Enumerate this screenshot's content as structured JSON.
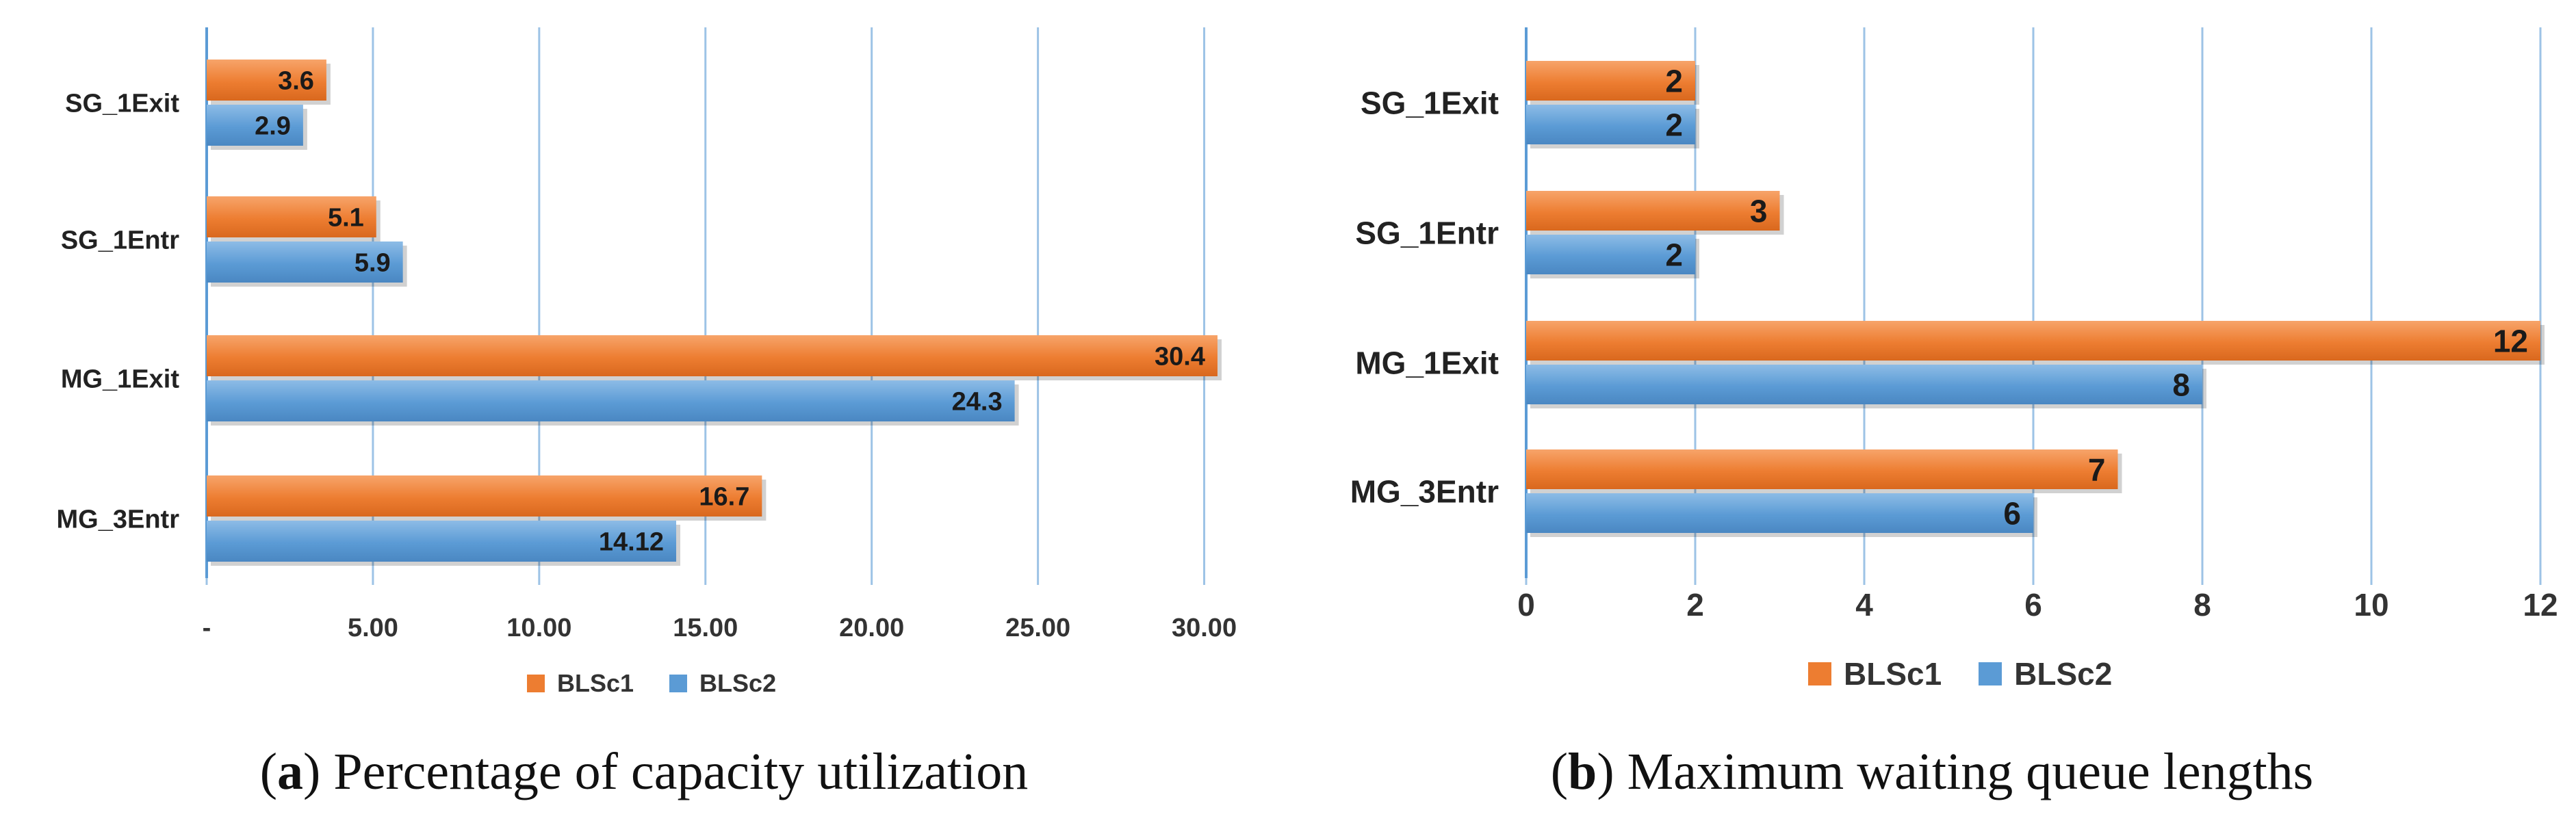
{
  "chart_data": [
    {
      "type": "bar",
      "orientation": "horizontal",
      "caption_letter": "a",
      "caption_text": "Percentage of capacity utilization",
      "categories": [
        "SG_1Exit",
        "SG_1Entr",
        "MG_1Exit",
        "MG_3Entr"
      ],
      "series": [
        {
          "name": "BLSc1",
          "color": "#ED7D31",
          "values": [
            3.6,
            5.1,
            30.4,
            16.7
          ],
          "labels": [
            "3.6",
            "5.1",
            "30.4",
            "16.7"
          ]
        },
        {
          "name": "BLSc2",
          "color": "#5B9BD5",
          "values": [
            2.9,
            5.9,
            24.3,
            14.12
          ],
          "labels": [
            "2.9",
            "5.9",
            "24.3",
            "14.12"
          ]
        }
      ],
      "xlim": [
        0,
        32.5
      ],
      "ticks": [
        0,
        5,
        10,
        15,
        20,
        25,
        30
      ],
      "tick_labels": [
        "-",
        "5.00",
        "10.00",
        "15.00",
        "20.00",
        "25.00",
        "30.00"
      ],
      "grid": true,
      "legend": "bottom"
    },
    {
      "type": "bar",
      "orientation": "horizontal",
      "caption_letter": "b",
      "caption_text": "Maximum waiting queue lengths",
      "categories": [
        "SG_1Exit",
        "SG_1Entr",
        "MG_1Exit",
        "MG_3Entr"
      ],
      "series": [
        {
          "name": "BLSc1",
          "color": "#ED7D31",
          "values": [
            2,
            3,
            12,
            7
          ],
          "labels": [
            "2",
            "3",
            "12",
            "7"
          ]
        },
        {
          "name": "BLSc2",
          "color": "#5B9BD5",
          "values": [
            2,
            2,
            8,
            6
          ],
          "labels": [
            "2",
            "2",
            "8",
            "6"
          ]
        }
      ],
      "xlim": [
        0,
        12
      ],
      "ticks": [
        0,
        2,
        4,
        6,
        8,
        10,
        12
      ],
      "tick_labels": [
        "0",
        "2",
        "4",
        "6",
        "8",
        "10",
        "12"
      ],
      "grid": true,
      "legend": "bottom"
    }
  ]
}
